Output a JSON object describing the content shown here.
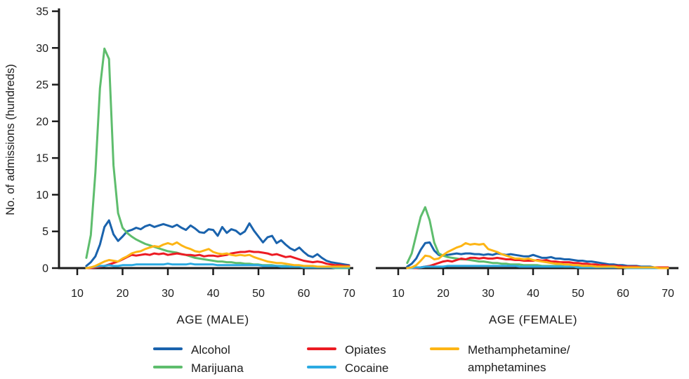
{
  "figure": {
    "ylabel": "No. of admissions (hundreds)",
    "background": "#ffffff",
    "axis_color": "#1c1c1c"
  },
  "legend": {
    "items": [
      {
        "label": "Alcohol",
        "series": "alcohol"
      },
      {
        "label": "Marijuana",
        "series": "marijuana"
      },
      {
        "label": "Opiates",
        "series": "opiates"
      },
      {
        "label": "Cocaine",
        "series": "cocaine"
      },
      {
        "label": "Methamphetamine/",
        "label2": "amphetamines",
        "series": "meth"
      }
    ]
  },
  "chart_data": {
    "type": "line",
    "title": "",
    "ylabel": "No. of admissions (hundreds)",
    "ylim": [
      0,
      35
    ],
    "y_ticks": [
      0,
      5,
      10,
      15,
      20,
      25,
      30,
      35
    ],
    "x_ticks": [
      10,
      20,
      30,
      40,
      50,
      60,
      70
    ],
    "xlim": [
      10,
      72
    ],
    "grid": false,
    "legend_position": "bottom",
    "colors": {
      "alcohol": "#1A63AD",
      "marijuana": "#5EBD6D",
      "opiates": "#EC1B23",
      "cocaine": "#2BAAE2",
      "meth": "#FDB515"
    },
    "series_order": [
      "alcohol",
      "marijuana",
      "opiates",
      "cocaine",
      "meth"
    ],
    "ages": [
      12,
      13,
      14,
      15,
      16,
      17,
      18,
      19,
      20,
      21,
      22,
      23,
      24,
      25,
      26,
      27,
      28,
      29,
      30,
      31,
      32,
      33,
      34,
      35,
      36,
      37,
      38,
      39,
      40,
      41,
      42,
      43,
      44,
      45,
      46,
      47,
      48,
      49,
      50,
      51,
      52,
      53,
      54,
      55,
      56,
      57,
      58,
      59,
      60,
      61,
      62,
      63,
      64,
      65,
      66,
      67,
      68,
      69,
      70
    ],
    "panels": [
      {
        "name": "male",
        "xlabel": "AGE (MALE)",
        "series": {
          "alcohol": [
            0.3,
            0.8,
            1.6,
            3.2,
            5.6,
            6.5,
            4.6,
            3.7,
            4.3,
            5.0,
            5.2,
            5.5,
            5.3,
            5.7,
            5.9,
            5.6,
            5.8,
            6.0,
            5.8,
            5.6,
            5.9,
            5.5,
            5.2,
            5.8,
            5.4,
            4.9,
            4.8,
            5.3,
            5.2,
            4.4,
            5.6,
            4.8,
            5.3,
            5.1,
            4.6,
            5.0,
            6.1,
            5.1,
            4.3,
            3.5,
            4.2,
            4.4,
            3.4,
            3.8,
            3.2,
            2.7,
            2.4,
            2.8,
            2.2,
            1.7,
            1.5,
            1.9,
            1.4,
            1.0,
            0.8,
            0.7,
            0.6,
            0.5,
            0.4
          ],
          "marijuana": [
            1.4,
            4.5,
            13.0,
            24.5,
            29.9,
            28.5,
            14.0,
            7.5,
            5.5,
            4.8,
            4.3,
            3.9,
            3.6,
            3.3,
            3.1,
            2.9,
            2.7,
            2.5,
            2.3,
            2.2,
            2.1,
            1.9,
            1.8,
            1.6,
            1.4,
            1.3,
            1.2,
            1.1,
            1.0,
            0.9,
            0.9,
            0.8,
            0.8,
            0.7,
            0.7,
            0.6,
            0.6,
            0.5,
            0.5,
            0.4,
            0.4,
            0.4,
            0.3,
            0.3,
            0.3,
            0.2,
            0.2,
            0.2,
            0.2,
            0.1,
            0.1,
            0.1,
            0.1,
            0.1,
            0.1,
            0.0,
            0.0,
            0.0,
            0.0
          ],
          "opiates": [
            0.0,
            0.0,
            0.1,
            0.2,
            0.3,
            0.5,
            0.7,
            0.9,
            1.2,
            1.5,
            1.8,
            1.7,
            1.8,
            1.9,
            1.8,
            2.0,
            1.9,
            2.0,
            1.8,
            1.9,
            2.0,
            1.9,
            1.8,
            1.8,
            1.7,
            1.8,
            1.6,
            1.7,
            1.7,
            1.6,
            1.7,
            1.8,
            2.0,
            2.1,
            2.2,
            2.2,
            2.3,
            2.2,
            2.2,
            2.1,
            2.0,
            1.8,
            1.9,
            1.7,
            1.5,
            1.6,
            1.4,
            1.2,
            1.0,
            0.9,
            0.8,
            0.9,
            0.8,
            0.6,
            0.5,
            0.4,
            0.4,
            0.3,
            0.3
          ],
          "cocaine": [
            0.0,
            0.1,
            0.2,
            0.3,
            0.3,
            0.4,
            0.3,
            0.3,
            0.4,
            0.4,
            0.4,
            0.5,
            0.5,
            0.5,
            0.5,
            0.5,
            0.5,
            0.5,
            0.6,
            0.5,
            0.5,
            0.5,
            0.5,
            0.6,
            0.5,
            0.5,
            0.5,
            0.5,
            0.5,
            0.4,
            0.4,
            0.4,
            0.4,
            0.4,
            0.4,
            0.4,
            0.4,
            0.4,
            0.4,
            0.3,
            0.3,
            0.3,
            0.3,
            0.2,
            0.2,
            0.2,
            0.2,
            0.2,
            0.1,
            0.1,
            0.1,
            0.1,
            0.1,
            0.1,
            0.1,
            0.1,
            0.1,
            0.1,
            0.1
          ],
          "meth": [
            0.0,
            0.1,
            0.3,
            0.6,
            0.9,
            1.1,
            1.0,
            0.9,
            1.3,
            1.6,
            2.0,
            2.2,
            2.3,
            2.6,
            2.8,
            3.0,
            2.9,
            3.2,
            3.4,
            3.2,
            3.5,
            3.1,
            2.8,
            2.6,
            2.3,
            2.2,
            2.4,
            2.6,
            2.2,
            2.0,
            1.9,
            2.0,
            1.8,
            1.7,
            1.8,
            1.7,
            1.8,
            1.5,
            1.3,
            1.1,
            0.9,
            0.8,
            0.7,
            0.7,
            0.6,
            0.5,
            0.4,
            0.4,
            0.3,
            0.3,
            0.3,
            0.2,
            0.2,
            0.2,
            0.2,
            0.2,
            0.2,
            0.2,
            0.2
          ]
        }
      },
      {
        "name": "female",
        "xlabel": "AGE (FEMALE)",
        "series": {
          "alcohol": [
            0.2,
            0.6,
            1.3,
            2.5,
            3.4,
            3.5,
            2.4,
            1.8,
            1.7,
            1.8,
            1.9,
            2.0,
            1.9,
            2.0,
            2.0,
            1.9,
            1.9,
            1.8,
            1.9,
            1.8,
            2.0,
            1.9,
            1.8,
            1.9,
            1.8,
            1.7,
            1.6,
            1.6,
            1.8,
            1.6,
            1.4,
            1.4,
            1.5,
            1.3,
            1.3,
            1.2,
            1.2,
            1.1,
            1.0,
            1.0,
            0.9,
            0.9,
            0.8,
            0.7,
            0.6,
            0.5,
            0.5,
            0.4,
            0.4,
            0.3,
            0.3,
            0.3,
            0.2,
            0.2,
            0.2,
            0.1,
            0.1,
            0.1,
            0.1
          ],
          "marijuana": [
            0.7,
            2.0,
            4.5,
            7.0,
            8.3,
            6.5,
            3.5,
            2.0,
            1.7,
            1.5,
            1.4,
            1.3,
            1.2,
            1.2,
            1.1,
            1.0,
            0.9,
            0.9,
            0.8,
            0.7,
            0.7,
            0.6,
            0.6,
            0.5,
            0.5,
            0.5,
            0.4,
            0.4,
            0.4,
            0.4,
            0.3,
            0.3,
            0.3,
            0.3,
            0.3,
            0.2,
            0.2,
            0.2,
            0.2,
            0.2,
            0.2,
            0.1,
            0.1,
            0.1,
            0.1,
            0.1,
            0.1,
            0.1,
            0.1,
            0.0,
            0.0,
            0.0,
            0.0,
            0.0,
            0.0,
            0.0,
            0.0,
            0.0,
            0.0
          ],
          "opiates": [
            0.0,
            0.0,
            0.0,
            0.1,
            0.2,
            0.3,
            0.5,
            0.7,
            0.9,
            1.0,
            0.9,
            1.1,
            1.3,
            1.2,
            1.4,
            1.4,
            1.3,
            1.4,
            1.3,
            1.3,
            1.4,
            1.3,
            1.2,
            1.2,
            1.1,
            1.1,
            1.0,
            1.0,
            1.0,
            1.1,
            1.0,
            1.1,
            0.9,
            0.9,
            0.8,
            0.8,
            0.8,
            0.7,
            0.7,
            0.6,
            0.6,
            0.5,
            0.5,
            0.4,
            0.4,
            0.3,
            0.3,
            0.3,
            0.2,
            0.2,
            0.2,
            0.2,
            0.1,
            0.1,
            0.1,
            0.1,
            0.1,
            0.1,
            0.1
          ],
          "cocaine": [
            0.0,
            0.0,
            0.1,
            0.1,
            0.2,
            0.2,
            0.2,
            0.2,
            0.2,
            0.3,
            0.3,
            0.3,
            0.3,
            0.3,
            0.3,
            0.3,
            0.3,
            0.3,
            0.3,
            0.3,
            0.3,
            0.3,
            0.3,
            0.3,
            0.3,
            0.2,
            0.2,
            0.2,
            0.2,
            0.2,
            0.2,
            0.2,
            0.2,
            0.2,
            0.2,
            0.2,
            0.2,
            0.2,
            0.1,
            0.1,
            0.1,
            0.1,
            0.1,
            0.1,
            0.1,
            0.1,
            0.1,
            0.1,
            0.1,
            0.0,
            0.0,
            0.0,
            0.0,
            0.0,
            0.0,
            0.0,
            0.0,
            0.0,
            0.0
          ],
          "meth": [
            0.0,
            0.1,
            0.4,
            1.0,
            1.7,
            1.6,
            1.2,
            1.3,
            1.8,
            2.2,
            2.5,
            2.8,
            3.0,
            3.4,
            3.2,
            3.3,
            3.2,
            3.3,
            2.6,
            2.4,
            2.2,
            1.9,
            1.7,
            1.5,
            1.3,
            1.3,
            1.2,
            1.3,
            1.1,
            1.0,
            0.9,
            0.8,
            0.7,
            0.6,
            0.6,
            0.5,
            0.5,
            0.4,
            0.4,
            0.3,
            0.3,
            0.3,
            0.2,
            0.2,
            0.2,
            0.2,
            0.2,
            0.1,
            0.1,
            0.1,
            0.1,
            0.1,
            0.1,
            0.1,
            0.1,
            0.1,
            0.0,
            0.0,
            0.0
          ]
        }
      }
    ]
  }
}
